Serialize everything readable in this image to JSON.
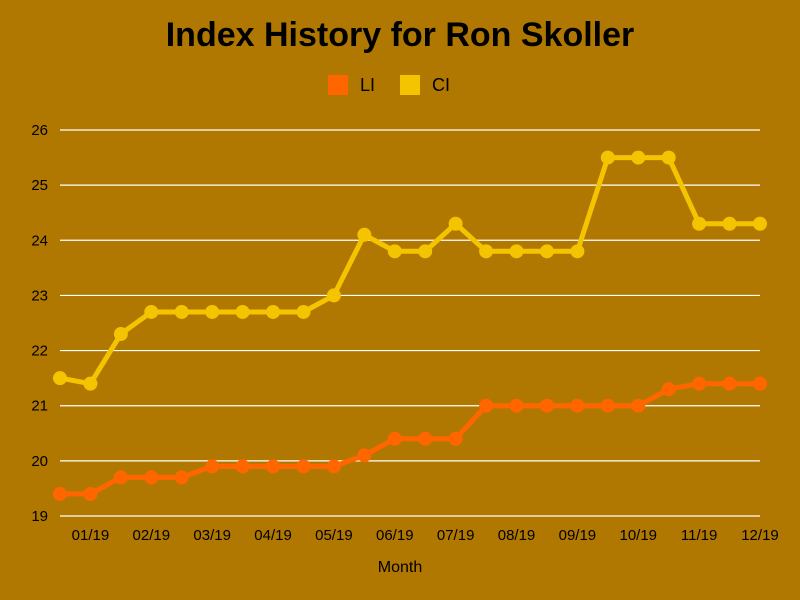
{
  "chart_data": {
    "type": "line",
    "title": "Index History for Ron Skoller",
    "xlabel": "Month",
    "ylabel": "",
    "ylim": [
      19,
      26
    ],
    "yticks": [
      19,
      20,
      21,
      22,
      23,
      24,
      25,
      26
    ],
    "xtick_labels": [
      "01/19",
      "02/19",
      "03/19",
      "04/19",
      "05/19",
      "06/19",
      "07/19",
      "08/19",
      "09/19",
      "10/19",
      "11/19",
      "12/19"
    ],
    "grid": true,
    "legend_position": "top-center",
    "series": [
      {
        "name": "LI",
        "color": "#ff6600",
        "values": [
          19.4,
          19.4,
          19.7,
          19.7,
          19.7,
          19.9,
          19.9,
          19.9,
          19.9,
          19.9,
          20.1,
          20.4,
          20.4,
          20.4,
          21.0,
          21.0,
          21.0,
          21.0,
          21.0,
          21.0,
          21.3,
          21.4,
          21.4,
          21.4
        ]
      },
      {
        "name": "CI",
        "color": "#f5c400",
        "values": [
          21.5,
          21.4,
          22.3,
          22.7,
          22.7,
          22.7,
          22.7,
          22.7,
          22.7,
          23.0,
          24.1,
          23.8,
          23.8,
          24.3,
          23.8,
          23.8,
          23.8,
          23.8,
          25.5,
          25.5,
          25.5,
          24.3,
          24.3,
          24.3
        ]
      }
    ]
  }
}
